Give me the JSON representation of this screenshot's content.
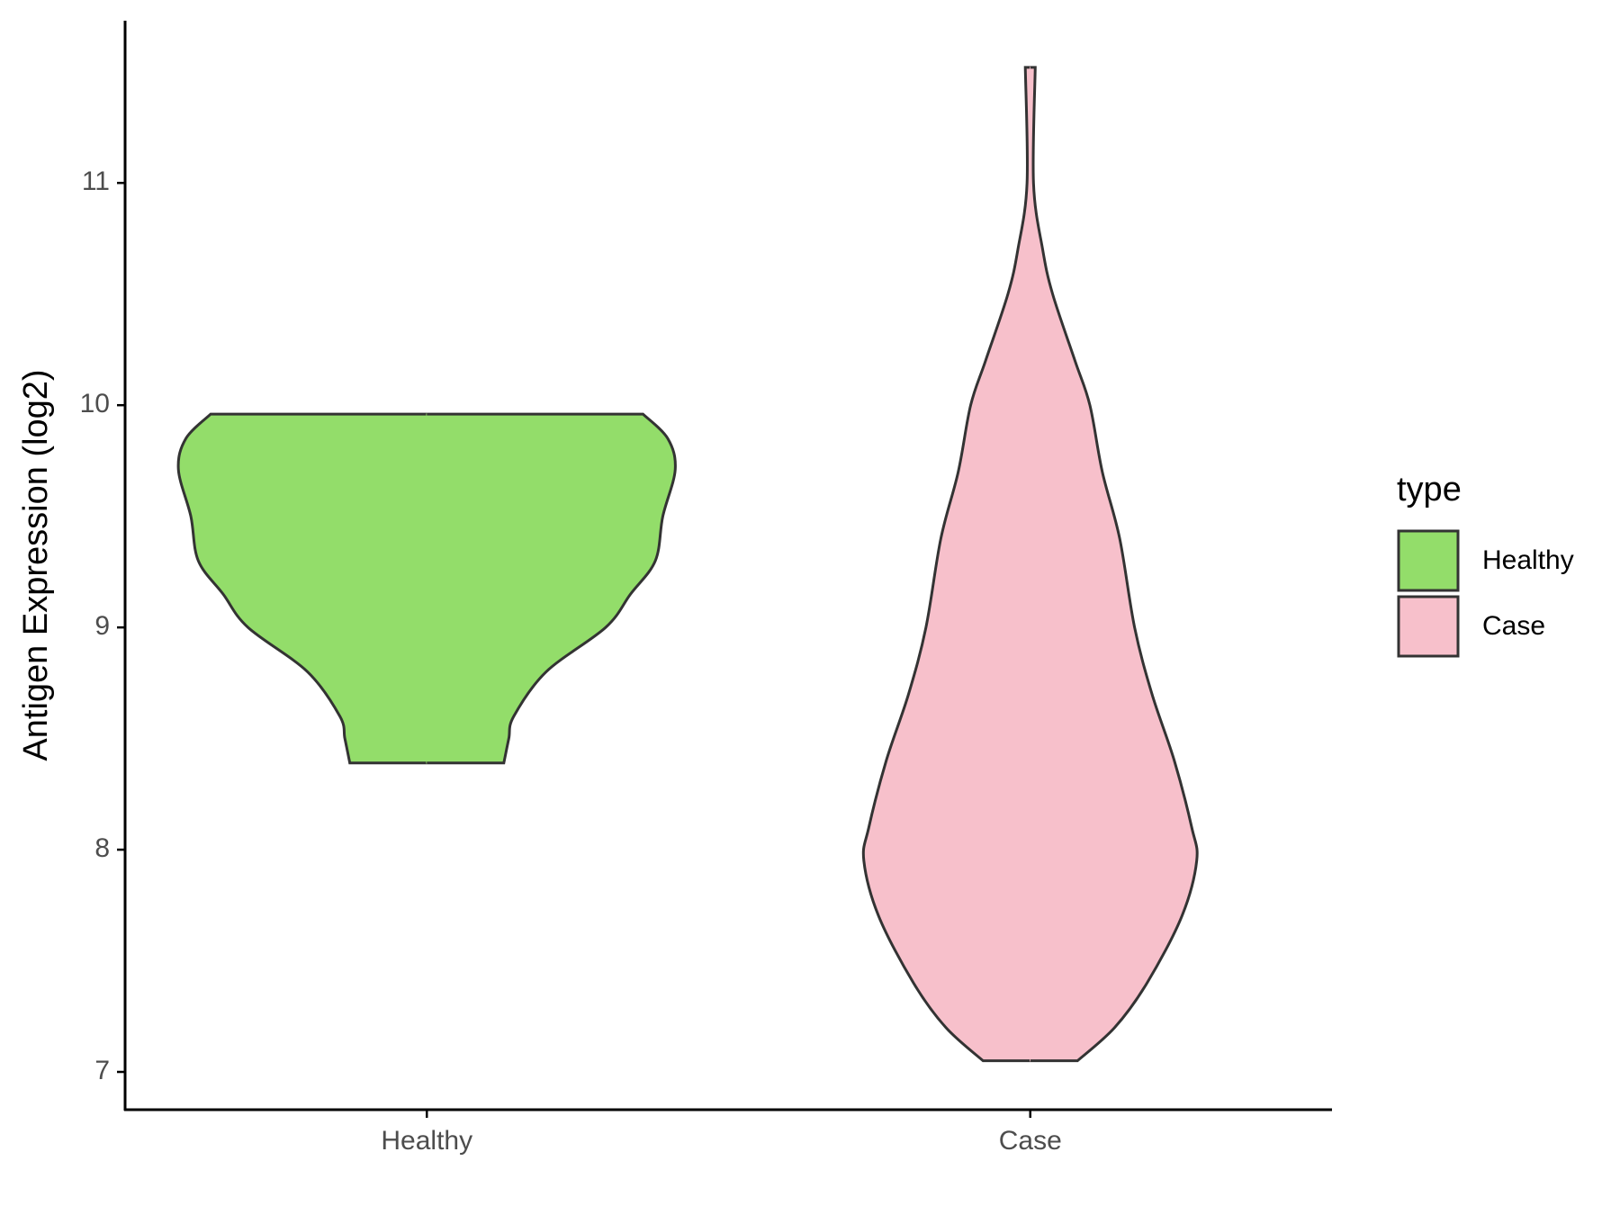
{
  "chart_data": {
    "type": "violin",
    "y_label": "Antigen Expression (log2)",
    "legend_title": "type",
    "categories": [
      "Healthy",
      "Case"
    ],
    "ylim": [
      6.83,
      11.73
    ],
    "yticks": [
      7,
      8,
      9,
      10,
      11
    ],
    "series": [
      {
        "name": "Healthy",
        "color": "#93dd6a",
        "y": [
          9.96,
          9.85,
          9.71,
          9.5,
          9.3,
          9.15,
          9.0,
          8.8,
          8.6,
          8.5,
          8.39
        ],
        "density": [
          0.87,
          0.97,
          1.0,
          0.95,
          0.92,
          0.82,
          0.72,
          0.48,
          0.35,
          0.33,
          0.31
        ]
      },
      {
        "name": "Case",
        "color": "#f7c0cb",
        "y": [
          11.52,
          11.0,
          10.7,
          10.5,
          10.2,
          10.0,
          9.7,
          9.4,
          9.0,
          8.7,
          8.4,
          8.1,
          7.95,
          7.7,
          7.4,
          7.2,
          7.05
        ],
        "density": [
          0.02,
          0.013,
          0.05,
          0.09,
          0.18,
          0.24,
          0.29,
          0.36,
          0.42,
          0.49,
          0.58,
          0.65,
          0.67,
          0.61,
          0.47,
          0.34,
          0.19
        ]
      }
    ]
  }
}
